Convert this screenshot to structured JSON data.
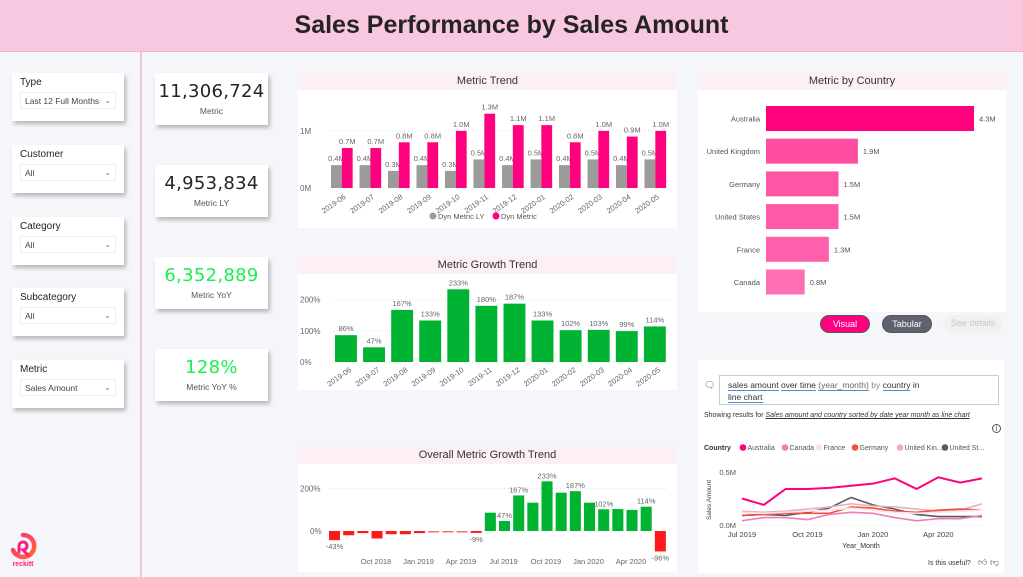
{
  "header": {
    "title": "Sales Performance by Sales Amount"
  },
  "slicers": [
    {
      "label": "Type",
      "value": "Last 12 Full Months"
    },
    {
      "label": "Customer",
      "value": "All"
    },
    {
      "label": "Category",
      "value": "All"
    },
    {
      "label": "Subcategory",
      "value": "All"
    },
    {
      "label": "Metric",
      "value": "Sales Amount"
    }
  ],
  "kpis": [
    {
      "value": "11,306,724",
      "caption": "Metric"
    },
    {
      "value": "4,953,834",
      "caption": "Metric LY"
    },
    {
      "value": "6,352,889",
      "caption": "Metric YoY"
    },
    {
      "value": "128%",
      "caption": "Metric YoY %"
    }
  ],
  "colors": {
    "pink": "#ff007f",
    "gray": "#9b9b9b",
    "green": "#00b333",
    "red": "#ff1a1a",
    "kpi_green": "#1aef4f"
  },
  "logo": {
    "text": "reckitt"
  },
  "qa": {
    "query_tokens": [
      "sales amount",
      "over time",
      "(year_month)",
      "by",
      "country",
      "in",
      "line chart"
    ],
    "query_line1": "sales amount over time (year_month) by country in",
    "query_line2": "line chart",
    "showing_prefix": "Showing results for",
    "showing_link": "Sales amount and country sorted by date year month as line chart",
    "useful_text": "Is this useful?"
  },
  "buttons": {
    "visual": "Visual",
    "tabular": "Tabular",
    "see_details": "See details"
  },
  "chart_data": [
    {
      "id": "metric-trend",
      "type": "bar",
      "title": "Metric Trend",
      "categories": [
        "2019-06",
        "2019-07",
        "2019-08",
        "2019-09",
        "2019-10",
        "2019-11",
        "2019-12",
        "2020-01",
        "2020-02",
        "2020-03",
        "2020-04",
        "2020-05"
      ],
      "series": [
        {
          "name": "Dyn Metric LY",
          "color": "#9b9b9b",
          "values": [
            0.4,
            0.4,
            0.3,
            0.4,
            0.3,
            0.5,
            0.4,
            0.5,
            0.4,
            0.5,
            0.4,
            0.5
          ],
          "labels": [
            "0.4M",
            "0.4M",
            "0.3M",
            "0.4M",
            "0.3M",
            "0.5M",
            "0.4M",
            "0.5M",
            "0.4M",
            "0.5M",
            "0.4M",
            "0.5M"
          ]
        },
        {
          "name": "Dyn Metric",
          "color": "#ff007f",
          "values": [
            0.7,
            0.7,
            0.8,
            0.8,
            1.0,
            1.3,
            1.1,
            1.1,
            0.8,
            1.0,
            0.9,
            1.0
          ],
          "labels": [
            "0.7M",
            "0.7M",
            "0.8M",
            "0.8M",
            "1.0M",
            "1.3M",
            "1.1M",
            "1.1M",
            "0.8M",
            "1.0M",
            "0.9M",
            "1.0M"
          ]
        }
      ],
      "yticks": [
        "0M",
        "1M"
      ],
      "ylim": [
        0,
        1.4
      ],
      "legend": "bottom"
    },
    {
      "id": "metric-growth-trend",
      "type": "bar",
      "title": "Metric Growth Trend",
      "categories": [
        "2019-06",
        "2019-07",
        "2019-08",
        "2019-09",
        "2019-10",
        "2019-11",
        "2019-12",
        "2020-01",
        "2020-02",
        "2020-03",
        "2020-04",
        "2020-05"
      ],
      "values": [
        86,
        47,
        167,
        133,
        233,
        180,
        187,
        133,
        102,
        103,
        99,
        114
      ],
      "labels": [
        "86%",
        "47%",
        "167%",
        "133%",
        "233%",
        "180%",
        "187%",
        "133%",
        "102%",
        "103%",
        "99%",
        "114%"
      ],
      "yticks": [
        "0%",
        "100%",
        "200%"
      ],
      "ylim": [
        0,
        250
      ],
      "color": "#00b333"
    },
    {
      "id": "overall-metric-growth-trend",
      "type": "bar",
      "title": "Overall Metric Growth Trend",
      "values": [
        -43,
        -20,
        -10,
        -35,
        -15,
        -15,
        -10,
        -3,
        -3,
        -3,
        -9,
        86,
        47,
        167,
        133,
        233,
        180,
        187,
        133,
        102,
        103,
        99,
        114,
        -96
      ],
      "labels": [
        "-43%",
        "",
        "",
        "",
        "",
        "",
        "",
        "",
        "",
        "",
        "-9%",
        "",
        "47%",
        "167%",
        "",
        "233%",
        "",
        "187%",
        "",
        "102%",
        "",
        "",
        "114%",
        "-96%"
      ],
      "xticks": [
        "Oct 2018",
        "Jan 2019",
        "Apr 2019",
        "Jul 2019",
        "Oct 2019",
        "Jan 2020",
        "Apr 2020"
      ],
      "yticks": [
        "0%",
        "200%"
      ],
      "ylim": [
        -100,
        250
      ]
    },
    {
      "id": "metric-by-country",
      "type": "bar",
      "title": "Metric by Country",
      "orientation": "horizontal",
      "categories": [
        "Australia",
        "United Kingdom",
        "Germany",
        "United States",
        "France",
        "Canada"
      ],
      "values": [
        4.3,
        1.9,
        1.5,
        1.5,
        1.3,
        0.8
      ],
      "labels": [
        "4.3M",
        "1.9M",
        "1.5M",
        "1.5M",
        "1.3M",
        "0.8M"
      ],
      "colors": [
        "#ff007f",
        "#ff4da0",
        "#ff55a5",
        "#ff5aa8",
        "#ff60ab",
        "#ff6fb4"
      ]
    },
    {
      "id": "qa-line-chart",
      "type": "line",
      "legend_title": "Country",
      "ylabel": "Sales Amount",
      "xlabel": "Year_Month",
      "yticks": [
        "0.0M",
        "0.5M"
      ],
      "xticks": [
        "Jul 2019",
        "Oct 2019",
        "Jan 2020",
        "Apr 2020"
      ],
      "ylim": [
        0,
        0.5
      ],
      "series": [
        {
          "name": "Australia",
          "color": "#ff007f",
          "values": [
            0.25,
            0.19,
            0.34,
            0.34,
            0.35,
            0.37,
            0.39,
            0.44,
            0.34,
            0.45,
            0.4,
            0.44
          ]
        },
        {
          "name": "Canada",
          "color": "#f07cba",
          "values": [
            0.04,
            0.07,
            0.07,
            0.05,
            0.1,
            0.12,
            0.11,
            0.07,
            0.04,
            0.06,
            0.06,
            0.09
          ]
        },
        {
          "name": "France",
          "color": "#fde0ec",
          "values": [
            0.12,
            0.11,
            0.12,
            0.13,
            0.14,
            0.16,
            0.14,
            0.12,
            0.11,
            0.12,
            0.13,
            0.14
          ]
        },
        {
          "name": "Germany",
          "color": "#f0503c",
          "values": [
            0.09,
            0.1,
            0.11,
            0.11,
            0.11,
            0.17,
            0.16,
            0.13,
            0.12,
            0.14,
            0.15,
            0.14
          ]
        },
        {
          "name": "United Kin...",
          "color": "#eab0b8",
          "values": [
            0.13,
            0.12,
            0.13,
            0.15,
            0.17,
            0.2,
            0.18,
            0.17,
            0.15,
            0.13,
            0.14,
            0.2
          ]
        },
        {
          "name": "United St...",
          "color": "#555a66",
          "values": [
            0.09,
            0.1,
            0.09,
            0.12,
            0.16,
            0.26,
            0.19,
            0.15,
            0.1,
            0.08,
            0.08,
            0.08
          ]
        }
      ]
    }
  ]
}
